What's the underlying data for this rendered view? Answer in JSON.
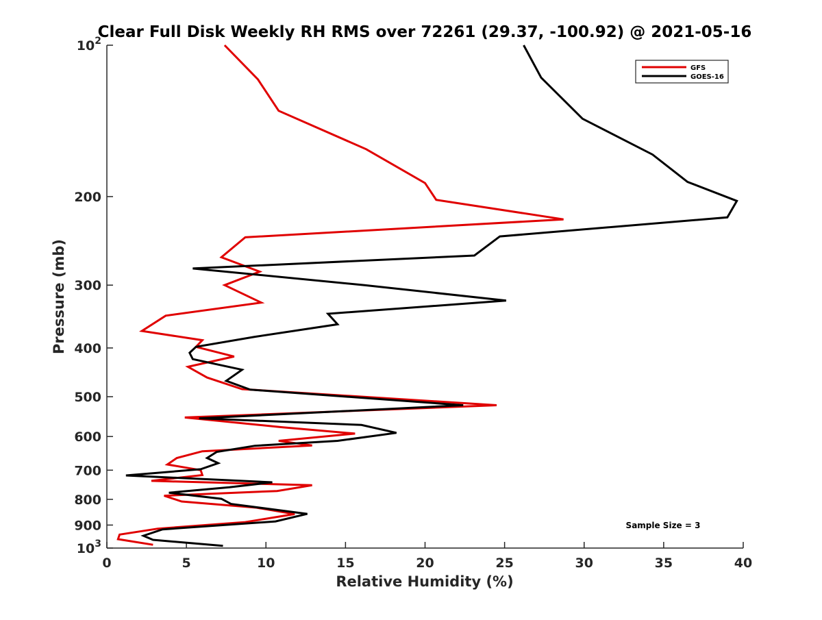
{
  "chart_data": {
    "type": "line",
    "title": "Clear Full Disk Weekly RH RMS over 72261 (29.37, -100.92) @ 2021-05-16",
    "xlabel": "Relative Humidity (%)",
    "ylabel": "Pressure (mb)",
    "xlim": [
      0,
      40
    ],
    "ylim": [
      100,
      1000
    ],
    "y_scale": "log",
    "y_reversed": true,
    "grid": false,
    "legend_position": "top-right",
    "x_ticks": [
      0,
      5,
      10,
      15,
      20,
      25,
      30,
      35,
      40
    ],
    "x_tick_labels": [
      "0",
      "5",
      "10",
      "15",
      "20",
      "25",
      "30",
      "35",
      "40"
    ],
    "y_ticks": [
      {
        "value": 100,
        "base": "10",
        "exp": "2"
      },
      {
        "value": 200,
        "label": "200"
      },
      {
        "value": 300,
        "label": "300"
      },
      {
        "value": 400,
        "label": "400"
      },
      {
        "value": 500,
        "label": "500"
      },
      {
        "value": 600,
        "label": "600"
      },
      {
        "value": 700,
        "label": "700"
      },
      {
        "value": 800,
        "label": "800"
      },
      {
        "value": 900,
        "label": "900"
      },
      {
        "value": 1000,
        "base": "10",
        "exp": "3"
      }
    ],
    "annotation": "Sample Size = 3",
    "series": [
      {
        "name": "GFS",
        "color": "#e00000",
        "x": [
          7.4,
          9.5,
          10.8,
          16.3,
          20,
          20.7,
          28.7,
          8.7,
          7.2,
          9.6,
          7.4,
          9.7,
          3.7,
          2.2,
          6,
          5.6,
          8,
          5.1,
          6.3,
          8.5,
          24.5,
          4.9,
          11,
          15.6,
          10.8,
          12.9,
          6,
          4.4,
          3.8,
          5.9,
          6,
          2.8,
          12.9,
          10.7,
          3.6,
          4.7,
          9.4,
          11.8,
          8.7,
          3.2,
          0.8,
          0.7,
          2.9
        ],
        "y": [
          100,
          117,
          135,
          161,
          188,
          203,
          222,
          241,
          264,
          282,
          300,
          325,
          345,
          370,
          386,
          398,
          416,
          436,
          458,
          483,
          520,
          550,
          575,
          592,
          612,
          625,
          642,
          662,
          682,
          700,
          716,
          735,
          750,
          770,
          787,
          808,
          831,
          856,
          888,
          915,
          940,
          960,
          985
        ]
      },
      {
        "name": "GOES-16",
        "color": "#000000",
        "x": [
          26.2,
          27.3,
          29.9,
          34.3,
          36.5,
          39.6,
          39,
          24.7,
          23.1,
          5.4,
          16.2,
          25.1,
          13.9,
          14.5,
          9.3,
          5.6,
          5.2,
          5.4,
          8.5,
          7.5,
          9,
          22.4,
          5.8,
          16,
          18.2,
          14.5,
          9.3,
          6.9,
          6.3,
          7,
          5.9,
          1.2,
          10.4,
          7.7,
          3.9,
          7.2,
          7.8,
          12.6,
          10.6,
          3.5,
          2.3,
          2.9,
          7.3
        ],
        "y": [
          100,
          116,
          140,
          165,
          187,
          204,
          220,
          240,
          262,
          278,
          300,
          322,
          342,
          359,
          380,
          398,
          409,
          421,
          442,
          465,
          484,
          520,
          552,
          569,
          590,
          612,
          626,
          644,
          662,
          678,
          697,
          717,
          740,
          757,
          776,
          798,
          817,
          855,
          885,
          918,
          945,
          963,
          990
        ]
      }
    ]
  }
}
